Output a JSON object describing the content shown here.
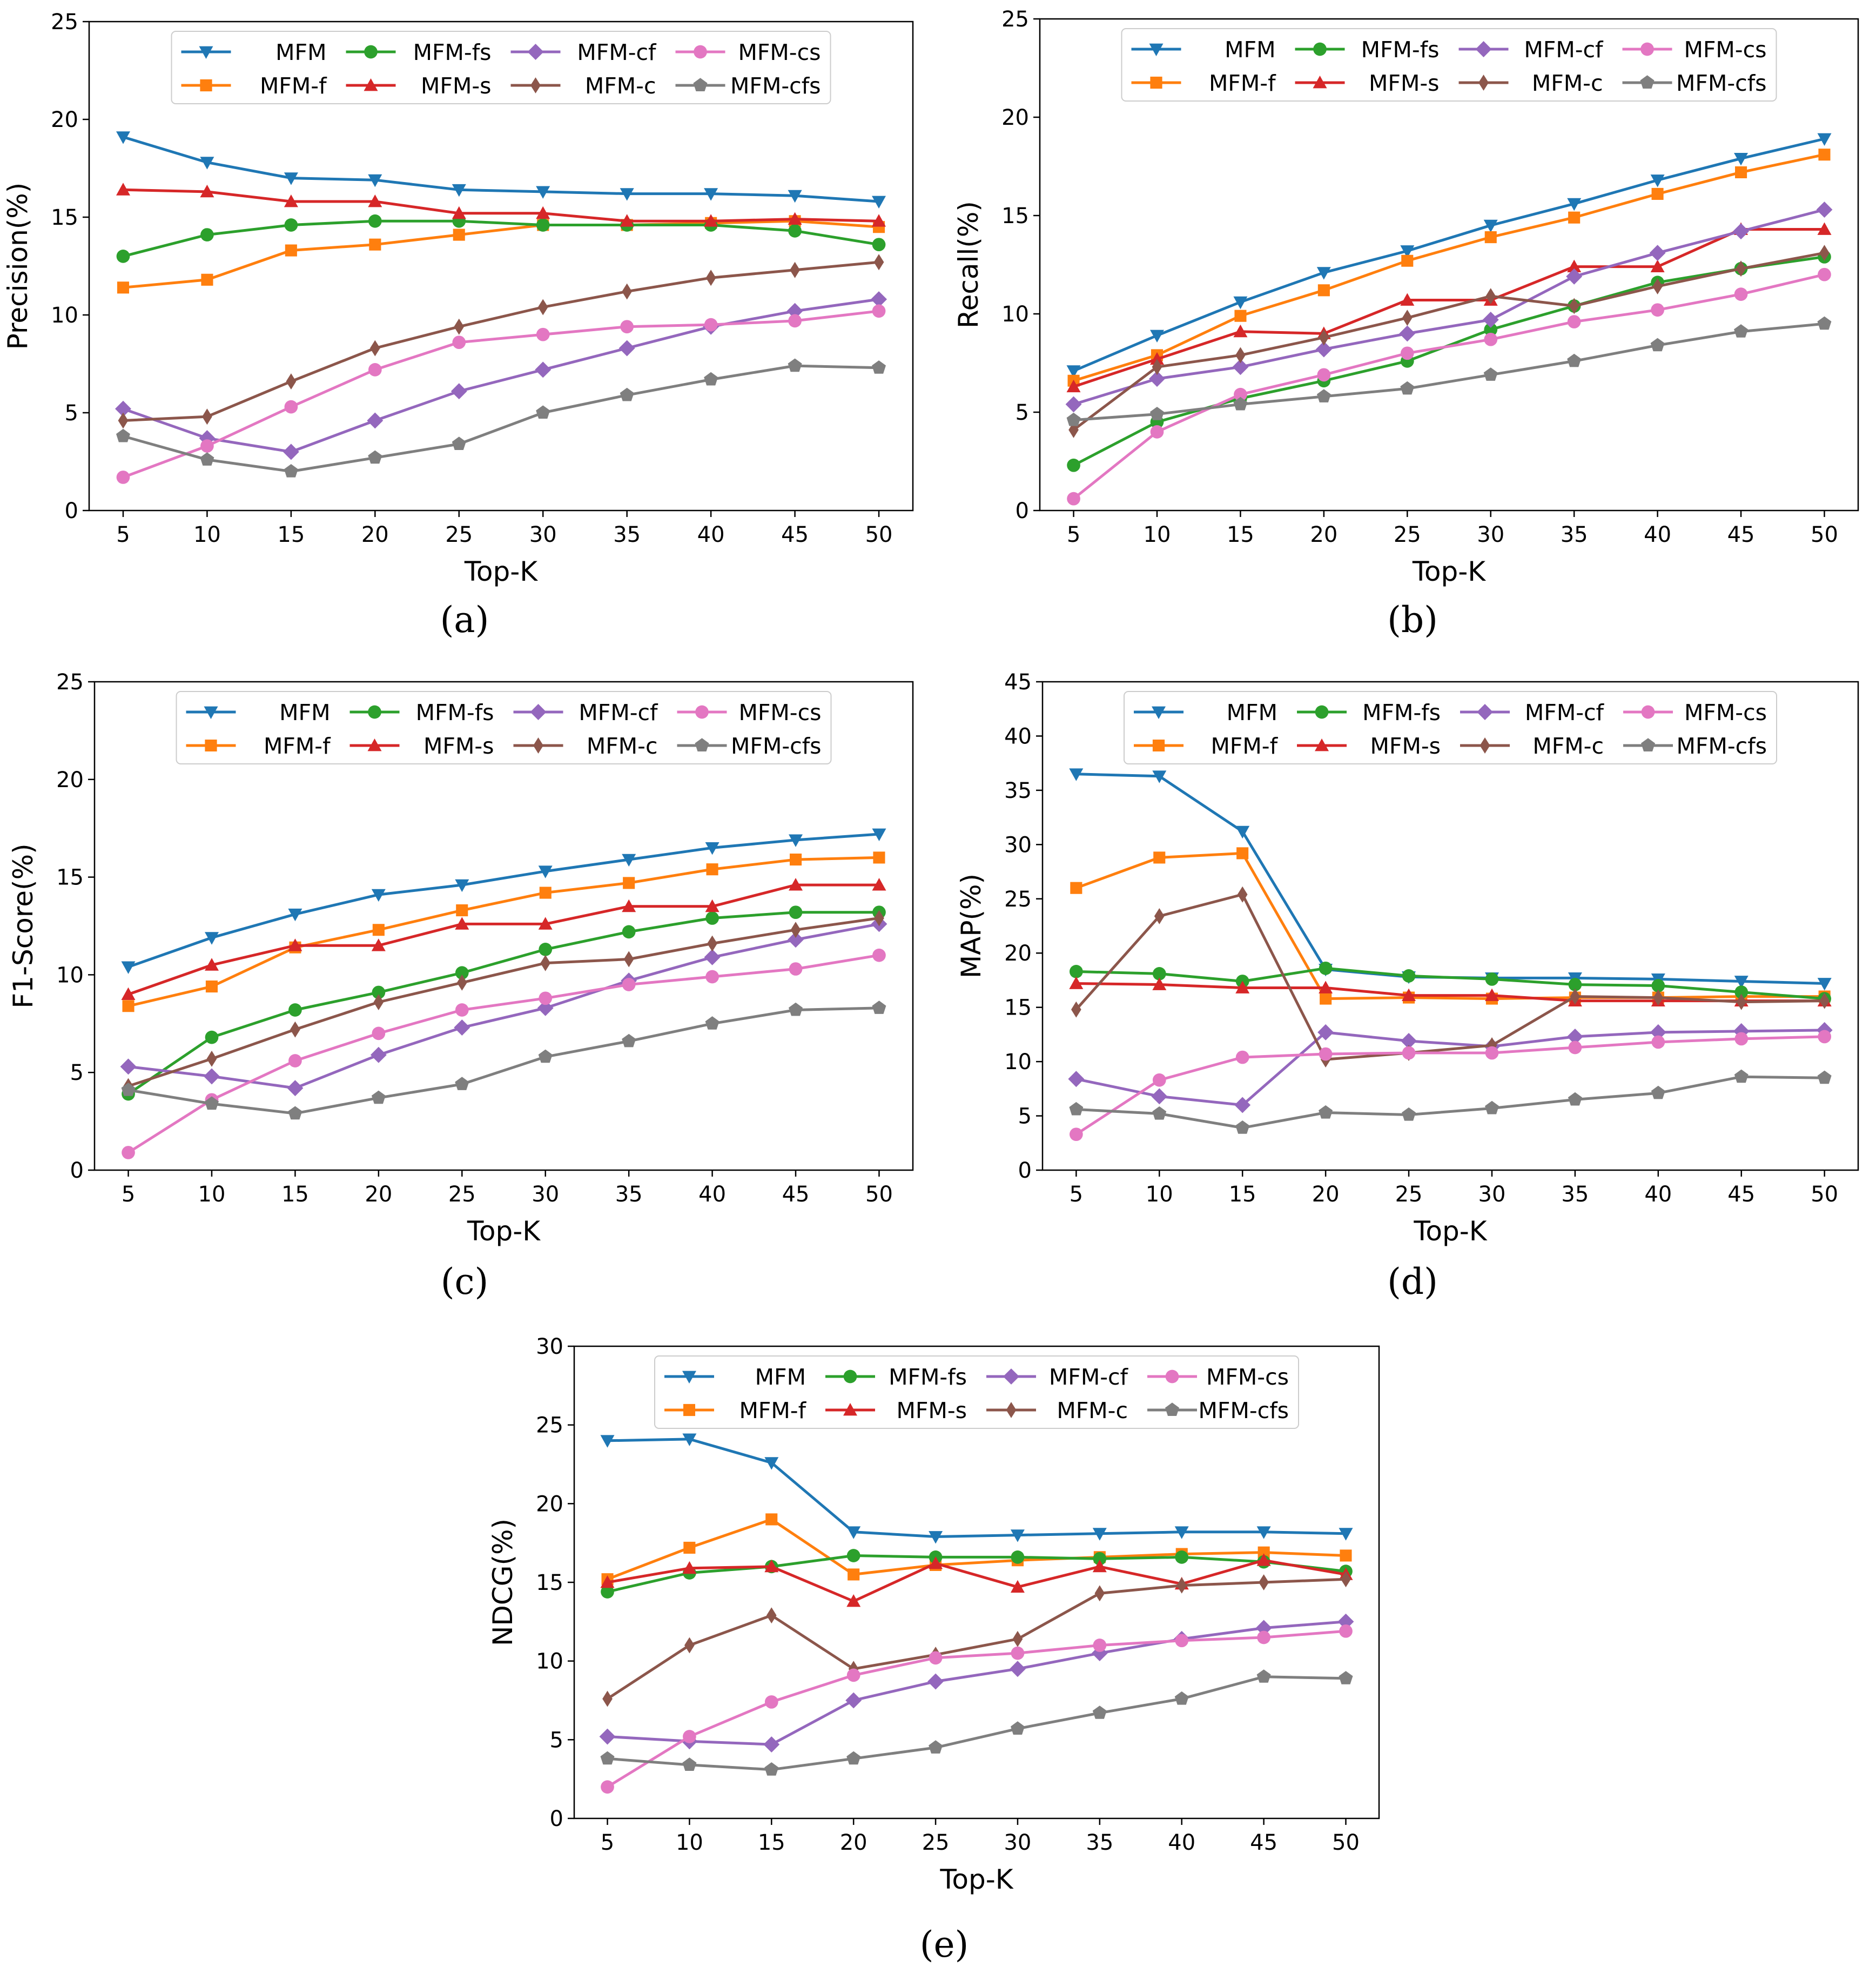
{
  "figure": {
    "series_colors": {
      "MFM": "#1f77b4",
      "MFM-f": "#ff7f0e",
      "MFM-fs": "#2ca02c",
      "MFM-s": "#d62728",
      "MFM-cf": "#9467bd",
      "MFM-c": "#8c564b",
      "MFM-cs": "#e377c2",
      "MFM-cfs": "#7f7f7f"
    },
    "legend_order": [
      "MFM",
      "MFM-fs",
      "MFM-cf",
      "MFM-cs",
      "MFM-f",
      "MFM-s",
      "MFM-c",
      "MFM-cfs"
    ]
  },
  "chart_data": [
    {
      "id": "a",
      "caption": "(a)",
      "type": "line",
      "title": "",
      "xlabel": "Top-K",
      "ylabel": "Precision(%)",
      "x": [
        5,
        10,
        15,
        20,
        25,
        30,
        35,
        40,
        45,
        50
      ],
      "ylim": [
        0,
        25
      ],
      "yticks": [
        0,
        5,
        10,
        15,
        20,
        25
      ],
      "grid": false,
      "legend": "top, 4 columns",
      "series": [
        {
          "name": "MFM",
          "marker": "triangle-down",
          "values": [
            19.1,
            17.8,
            17.0,
            16.9,
            16.4,
            16.3,
            16.2,
            16.2,
            16.1,
            15.8
          ]
        },
        {
          "name": "MFM-f",
          "marker": "square",
          "values": [
            11.4,
            11.8,
            13.3,
            13.6,
            14.1,
            14.6,
            14.6,
            14.7,
            14.8,
            14.5
          ]
        },
        {
          "name": "MFM-fs",
          "marker": "circle",
          "values": [
            13.0,
            14.1,
            14.6,
            14.8,
            14.8,
            14.6,
            14.6,
            14.6,
            14.3,
            13.6
          ]
        },
        {
          "name": "MFM-s",
          "marker": "triangle-up",
          "values": [
            16.4,
            16.3,
            15.8,
            15.8,
            15.2,
            15.2,
            14.8,
            14.8,
            14.9,
            14.8
          ]
        },
        {
          "name": "MFM-cf",
          "marker": "diamond",
          "values": [
            5.2,
            3.7,
            3.0,
            4.6,
            6.1,
            7.2,
            8.3,
            9.4,
            10.2,
            10.8
          ]
        },
        {
          "name": "MFM-c",
          "marker": "thin-diamond",
          "values": [
            4.6,
            4.8,
            6.6,
            8.3,
            9.4,
            10.4,
            11.2,
            11.9,
            12.3,
            12.7
          ]
        },
        {
          "name": "MFM-cs",
          "marker": "circle",
          "values": [
            1.7,
            3.3,
            5.3,
            7.2,
            8.6,
            9.0,
            9.4,
            9.5,
            9.7,
            10.2
          ]
        },
        {
          "name": "MFM-cfs",
          "marker": "pentagon",
          "values": [
            3.8,
            2.6,
            2.0,
            2.7,
            3.4,
            5.0,
            5.9,
            6.7,
            7.4,
            7.3
          ]
        }
      ]
    },
    {
      "id": "b",
      "caption": "(b)",
      "type": "line",
      "title": "",
      "xlabel": "Top-K",
      "ylabel": "Recall(%)",
      "x": [
        5,
        10,
        15,
        20,
        25,
        30,
        35,
        40,
        45,
        50
      ],
      "ylim": [
        0,
        25
      ],
      "yticks": [
        0,
        5,
        10,
        15,
        20,
        25
      ],
      "grid": false,
      "legend": "top, 4 columns",
      "series": [
        {
          "name": "MFM",
          "marker": "triangle-down",
          "values": [
            7.1,
            8.9,
            10.6,
            12.1,
            13.2,
            14.5,
            15.6,
            16.8,
            17.9,
            18.9
          ]
        },
        {
          "name": "MFM-f",
          "marker": "square",
          "values": [
            6.6,
            7.9,
            9.9,
            11.2,
            12.7,
            13.9,
            14.9,
            16.1,
            17.2,
            18.1
          ]
        },
        {
          "name": "MFM-fs",
          "marker": "circle",
          "values": [
            2.3,
            4.5,
            5.7,
            6.6,
            7.6,
            9.2,
            10.4,
            11.6,
            12.3,
            12.9
          ]
        },
        {
          "name": "MFM-s",
          "marker": "triangle-up",
          "values": [
            6.3,
            7.7,
            9.1,
            9.0,
            10.7,
            10.7,
            12.4,
            12.4,
            14.3,
            14.3
          ]
        },
        {
          "name": "MFM-cf",
          "marker": "diamond",
          "values": [
            5.4,
            6.7,
            7.3,
            8.2,
            9.0,
            9.7,
            11.9,
            13.1,
            14.2,
            15.3
          ]
        },
        {
          "name": "MFM-c",
          "marker": "thin-diamond",
          "values": [
            4.1,
            7.3,
            7.9,
            8.8,
            9.8,
            10.9,
            10.4,
            11.4,
            12.3,
            13.1
          ]
        },
        {
          "name": "MFM-cs",
          "marker": "circle",
          "values": [
            0.6,
            4.0,
            5.9,
            6.9,
            8.0,
            8.7,
            9.6,
            10.2,
            11.0,
            12.0
          ]
        },
        {
          "name": "MFM-cfs",
          "marker": "pentagon",
          "values": [
            4.6,
            4.9,
            5.4,
            5.8,
            6.2,
            6.9,
            7.6,
            8.4,
            9.1,
            9.5
          ]
        }
      ]
    },
    {
      "id": "c",
      "caption": "(c)",
      "type": "line",
      "title": "",
      "xlabel": "Top-K",
      "ylabel": "F1-Score(%)",
      "x": [
        5,
        10,
        15,
        20,
        25,
        30,
        35,
        40,
        45,
        50
      ],
      "ylim": [
        0,
        25
      ],
      "yticks": [
        0,
        5,
        10,
        15,
        20,
        25
      ],
      "grid": false,
      "legend": "top, 4 columns",
      "series": [
        {
          "name": "MFM",
          "marker": "triangle-down",
          "values": [
            10.4,
            11.9,
            13.1,
            14.1,
            14.6,
            15.3,
            15.9,
            16.5,
            16.9,
            17.2
          ]
        },
        {
          "name": "MFM-f",
          "marker": "square",
          "values": [
            8.4,
            9.4,
            11.4,
            12.3,
            13.3,
            14.2,
            14.7,
            15.4,
            15.9,
            16.0
          ]
        },
        {
          "name": "MFM-fs",
          "marker": "circle",
          "values": [
            3.9,
            6.8,
            8.2,
            9.1,
            10.1,
            11.3,
            12.2,
            12.9,
            13.2,
            13.2
          ]
        },
        {
          "name": "MFM-s",
          "marker": "triangle-up",
          "values": [
            9.0,
            10.5,
            11.5,
            11.5,
            12.6,
            12.6,
            13.5,
            13.5,
            14.6,
            14.6
          ]
        },
        {
          "name": "MFM-cf",
          "marker": "diamond",
          "values": [
            5.3,
            4.8,
            4.2,
            5.9,
            7.3,
            8.3,
            9.7,
            10.9,
            11.8,
            12.6
          ]
        },
        {
          "name": "MFM-c",
          "marker": "thin-diamond",
          "values": [
            4.3,
            5.7,
            7.2,
            8.6,
            9.6,
            10.6,
            10.8,
            11.6,
            12.3,
            12.9
          ]
        },
        {
          "name": "MFM-cs",
          "marker": "circle",
          "values": [
            0.9,
            3.6,
            5.6,
            7.0,
            8.2,
            8.8,
            9.5,
            9.9,
            10.3,
            11.0
          ]
        },
        {
          "name": "MFM-cfs",
          "marker": "pentagon",
          "values": [
            4.1,
            3.4,
            2.9,
            3.7,
            4.4,
            5.8,
            6.6,
            7.5,
            8.2,
            8.3
          ]
        }
      ]
    },
    {
      "id": "d",
      "caption": "(d)",
      "type": "line",
      "title": "",
      "xlabel": "Top-K",
      "ylabel": "MAP(%)",
      "x": [
        5,
        10,
        15,
        20,
        25,
        30,
        35,
        40,
        45,
        50
      ],
      "ylim": [
        0,
        45
      ],
      "yticks": [
        0,
        5,
        10,
        15,
        20,
        25,
        30,
        35,
        40,
        45
      ],
      "grid": false,
      "legend": "top, 4 columns",
      "series": [
        {
          "name": "MFM",
          "marker": "triangle-down",
          "values": [
            36.5,
            36.3,
            31.2,
            18.5,
            17.8,
            17.7,
            17.7,
            17.6,
            17.4,
            17.2
          ]
        },
        {
          "name": "MFM-f",
          "marker": "square",
          "values": [
            26.0,
            28.8,
            29.2,
            15.8,
            15.9,
            15.8,
            15.9,
            15.9,
            16.0,
            16.0
          ]
        },
        {
          "name": "MFM-fs",
          "marker": "circle",
          "values": [
            18.3,
            18.1,
            17.4,
            18.6,
            17.9,
            17.6,
            17.1,
            17.0,
            16.4,
            15.8
          ]
        },
        {
          "name": "MFM-s",
          "marker": "triangle-up",
          "values": [
            17.2,
            17.1,
            16.8,
            16.8,
            16.1,
            16.1,
            15.6,
            15.6,
            15.6,
            15.6
          ]
        },
        {
          "name": "MFM-cf",
          "marker": "diamond",
          "values": [
            8.4,
            6.8,
            6.0,
            12.7,
            11.9,
            11.4,
            12.3,
            12.7,
            12.8,
            12.9
          ]
        },
        {
          "name": "MFM-c",
          "marker": "thin-diamond",
          "values": [
            14.8,
            23.4,
            25.4,
            10.2,
            10.8,
            11.5,
            16.0,
            15.9,
            15.5,
            15.6
          ]
        },
        {
          "name": "MFM-cs",
          "marker": "circle",
          "values": [
            3.3,
            8.3,
            10.4,
            10.7,
            10.8,
            10.8,
            11.3,
            11.8,
            12.1,
            12.3
          ]
        },
        {
          "name": "MFM-cfs",
          "marker": "pentagon",
          "values": [
            5.6,
            5.2,
            3.9,
            5.3,
            5.1,
            5.7,
            6.5,
            7.1,
            8.6,
            8.5
          ]
        }
      ]
    },
    {
      "id": "e",
      "caption": "(e)",
      "type": "line",
      "title": "",
      "xlabel": "Top-K",
      "ylabel": "NDCG(%)",
      "x": [
        5,
        10,
        15,
        20,
        25,
        30,
        35,
        40,
        45,
        50
      ],
      "ylim": [
        0,
        30
      ],
      "yticks": [
        0,
        5,
        10,
        15,
        20,
        25,
        30
      ],
      "grid": false,
      "legend": "top, 4 columns",
      "series": [
        {
          "name": "MFM",
          "marker": "triangle-down",
          "values": [
            24.0,
            24.1,
            22.6,
            18.2,
            17.9,
            18.0,
            18.1,
            18.2,
            18.2,
            18.1
          ]
        },
        {
          "name": "MFM-f",
          "marker": "square",
          "values": [
            15.2,
            17.2,
            19.0,
            15.5,
            16.1,
            16.4,
            16.6,
            16.8,
            16.9,
            16.7
          ]
        },
        {
          "name": "MFM-fs",
          "marker": "circle",
          "values": [
            14.4,
            15.6,
            16.0,
            16.7,
            16.6,
            16.6,
            16.5,
            16.6,
            16.3,
            15.7
          ]
        },
        {
          "name": "MFM-s",
          "marker": "triangle-up",
          "values": [
            15.0,
            15.9,
            16.0,
            13.8,
            16.2,
            14.7,
            16.0,
            14.9,
            16.4,
            15.5
          ]
        },
        {
          "name": "MFM-cf",
          "marker": "diamond",
          "values": [
            5.2,
            4.9,
            4.7,
            7.5,
            8.7,
            9.5,
            10.5,
            11.4,
            12.1,
            12.5
          ]
        },
        {
          "name": "MFM-c",
          "marker": "thin-diamond",
          "values": [
            7.6,
            11.0,
            12.9,
            9.5,
            10.4,
            11.4,
            14.3,
            14.8,
            15.0,
            15.2
          ]
        },
        {
          "name": "MFM-cs",
          "marker": "circle",
          "values": [
            2.0,
            5.2,
            7.4,
            9.1,
            10.2,
            10.5,
            11.0,
            11.3,
            11.5,
            11.9
          ]
        },
        {
          "name": "MFM-cfs",
          "marker": "pentagon",
          "values": [
            3.8,
            3.4,
            3.1,
            3.8,
            4.5,
            5.7,
            6.7,
            7.6,
            9.0,
            8.9
          ]
        }
      ]
    }
  ]
}
